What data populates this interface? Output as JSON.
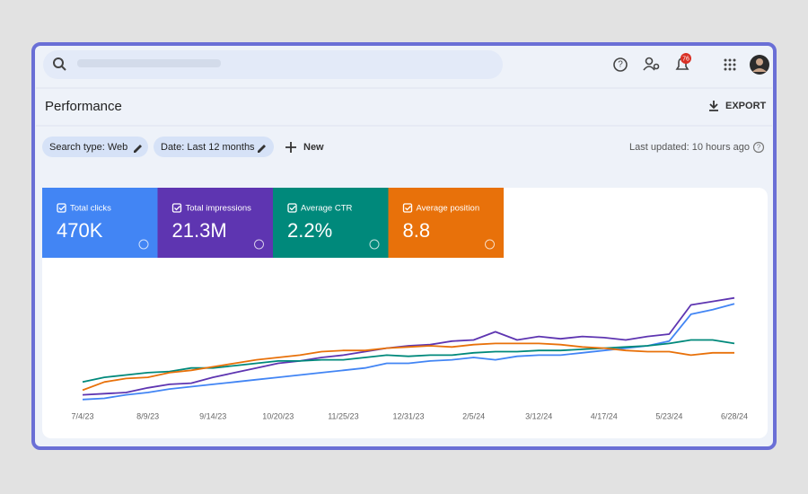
{
  "header": {
    "notification_count": "76"
  },
  "toolbar": {
    "title": "Performance",
    "export": "EXPORT"
  },
  "filters": {
    "chips": [
      "Search type: Web",
      "Date: Last 12 months"
    ],
    "new": "New",
    "last_updated": "Last updated: 10 hours ago"
  },
  "metrics": [
    "470K",
    "21.3M",
    "2.2%",
    "8.8"
  ],
  "chart_data": {
    "type": "line",
    "categories": [
      "7/4/23",
      null,
      null,
      "8/9/23",
      null,
      null,
      "9/14/23",
      null,
      null,
      "10/20/23",
      null,
      null,
      "11/25/23",
      null,
      null,
      "12/31/23",
      null,
      null,
      "2/5/24",
      null,
      null,
      "3/12/24",
      null,
      null,
      "4/17/24",
      null,
      null,
      "5/23/24",
      null,
      null,
      "6/28/24"
    ],
    "ylim": [
      0,
      100
    ],
    "series": [
      {
        "name": "Total clicks",
        "color": "#4285f4",
        "values": [
          4,
          5,
          8,
          10,
          13,
          15,
          17,
          19,
          21,
          23,
          25,
          27,
          29,
          31,
          35,
          35,
          37,
          38,
          40,
          38,
          41,
          42,
          42,
          44,
          46,
          48,
          50,
          54,
          77,
          81,
          86
        ]
      },
      {
        "name": "Total impressions",
        "color": "#5e35b1",
        "values": [
          8,
          9,
          10,
          14,
          17,
          18,
          23,
          27,
          31,
          35,
          37,
          40,
          42,
          45,
          48,
          50,
          51,
          54,
          55,
          62,
          55,
          58,
          56,
          58,
          57,
          55,
          58,
          60,
          85,
          88,
          91
        ]
      },
      {
        "name": "Average CTR",
        "color": "#00897b",
        "values": [
          19,
          23,
          25,
          27,
          28,
          31,
          31,
          33,
          35,
          37,
          37,
          38,
          38,
          40,
          42,
          41,
          42,
          42,
          44,
          45,
          45,
          46,
          46,
          47,
          48,
          49,
          50,
          52,
          55,
          55,
          52
        ]
      },
      {
        "name": "Average position",
        "color": "#e8710a",
        "values": [
          12,
          19,
          22,
          23,
          27,
          29,
          32,
          35,
          38,
          40,
          42,
          45,
          46,
          46,
          48,
          49,
          50,
          49,
          51,
          52,
          52,
          52,
          51,
          49,
          48,
          46,
          45,
          45,
          42,
          44,
          44
        ]
      }
    ]
  }
}
